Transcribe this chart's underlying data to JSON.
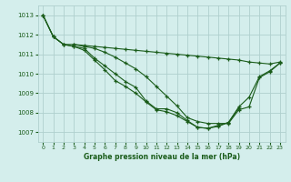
{
  "title": "Graphe pression niveau de la mer (hPa)",
  "bg_color": "#d4eeec",
  "grid_color": "#afd0ce",
  "line_color": "#1a5c1a",
  "x_ticks": [
    0,
    1,
    2,
    3,
    4,
    5,
    6,
    7,
    8,
    9,
    10,
    11,
    12,
    13,
    14,
    15,
    16,
    17,
    18,
    19,
    20,
    21,
    22,
    23
  ],
  "y_ticks": [
    1007,
    1008,
    1009,
    1010,
    1011,
    1012,
    1013
  ],
  "ylim": [
    1006.5,
    1013.5
  ],
  "xlim": [
    -0.5,
    23.5
  ],
  "line1": [
    1013.0,
    1011.9,
    1011.5,
    1011.5,
    1011.45,
    1011.4,
    1011.35,
    1011.3,
    1011.25,
    1011.2,
    1011.15,
    1011.1,
    1011.05,
    1011.0,
    1010.95,
    1010.9,
    1010.85,
    1010.8,
    1010.75,
    1010.7,
    1010.6,
    1010.55,
    1010.5,
    1010.6
  ],
  "line2": [
    1013.0,
    1011.9,
    1011.5,
    1011.4,
    1011.3,
    1010.8,
    1010.4,
    1010.0,
    1009.6,
    1009.3,
    1008.6,
    1008.2,
    1008.2,
    1008.0,
    1007.6,
    1007.25,
    1007.2,
    1007.3,
    1007.5,
    1008.3,
    1008.8,
    1009.85,
    1010.15,
    1010.55
  ],
  "line3": [
    1013.0,
    1011.9,
    1011.5,
    1011.4,
    1011.2,
    1010.7,
    1010.2,
    1009.65,
    1009.35,
    1009.0,
    1008.55,
    1008.15,
    1008.05,
    1007.85,
    1007.55,
    1007.25,
    1007.2,
    1007.35,
    1007.5,
    1008.25,
    null,
    null,
    null,
    null
  ],
  "line4": [
    null,
    null,
    null,
    1011.5,
    1011.4,
    1011.3,
    1011.1,
    1010.85,
    1010.55,
    1010.25,
    1009.85,
    1009.35,
    1008.85,
    1008.35,
    1007.75,
    1007.55,
    1007.45,
    1007.45,
    1007.45,
    1008.15,
    1008.3,
    1009.8,
    1010.1,
    1010.55
  ]
}
